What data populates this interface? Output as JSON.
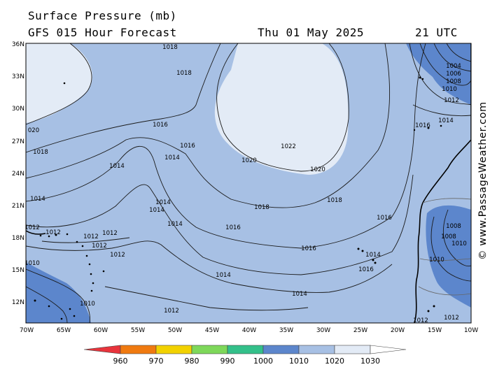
{
  "header": {
    "title": "Surface Pressure (mb)",
    "subtitle": "GFS 015 Hour Forecast",
    "date": "Thu 01 May 2025",
    "time": "21 UTC"
  },
  "copyright": "© www.PassageWeather.com",
  "axes": {
    "lat_labels": [
      "36N",
      "33N",
      "30N",
      "27N",
      "24N",
      "21N",
      "18N",
      "15N",
      "12N"
    ],
    "lon_labels": [
      "70W",
      "65W",
      "60W",
      "55W",
      "50W",
      "45W",
      "40W",
      "35W",
      "30W",
      "25W",
      "20W",
      "15W",
      "10W"
    ]
  },
  "isobar_labels": {
    "l1018a": "1018",
    "l1018b": "1018",
    "l1020a": "020",
    "l1018c": "1018",
    "l1016a": "1016",
    "l1016b": "1016",
    "l1014a": "1014",
    "l1014b": "1014",
    "l1022": "1022",
    "l1020b": "1020",
    "l1020c": "1020",
    "l1014c": "1014",
    "l1014d": "1014",
    "l1014e": "1014",
    "l1014f": "1014",
    "l1018d": "1018",
    "l1018e": "1018",
    "l1016c": "1016",
    "l1016d": "1016",
    "l1016e": "1016",
    "l1016f": "1016",
    "l1014g": "1014",
    "l1014h": "1014",
    "l1012a": "1012",
    "l1012b": "1012",
    "l1012c": "1012",
    "l1012d": "1012",
    "l1012e": "1012",
    "l1010a": "1010",
    "l1010b": "1010",
    "l1004": "1004",
    "l1006": "1006",
    "l1008": "1008",
    "l1010c": "1010",
    "l1012f": "1012",
    "l1014i": "1014",
    "l1016g": "1016",
    "l1008b": "1008",
    "l1008c": "1008",
    "l1010d": "1010",
    "l1010e": "1010",
    "l1012g": "1012",
    "l1012h": "1012",
    "l1014j": "1014"
  },
  "colorbar": {
    "ticks": [
      "960",
      "970",
      "980",
      "990",
      "1000",
      "1010",
      "1020",
      "1030"
    ],
    "colors": [
      "#e8343c",
      "#f07a10",
      "#f2d200",
      "#7ed85a",
      "#33c08a",
      "#5c86cc",
      "#a7c0e4",
      "#e3ebf6"
    ]
  }
}
